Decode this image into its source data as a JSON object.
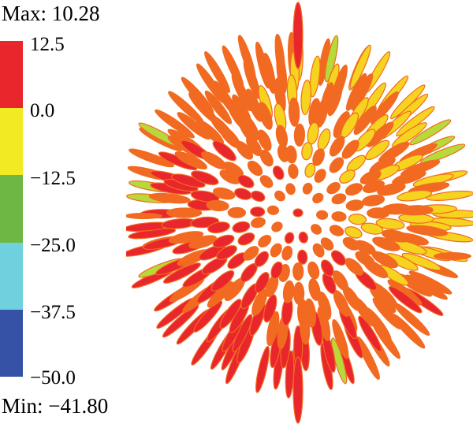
{
  "header": {
    "max_text": "Max: 10.28"
  },
  "footer": {
    "min_text": "Min: −41.80"
  },
  "legend": {
    "ticks": [
      "12.5",
      "0.0",
      "−12.5",
      "−25.0",
      "−37.5",
      "−50.0"
    ],
    "bands": [
      {
        "color": "#e8262b"
      },
      {
        "color": "#f2ea23"
      },
      {
        "color": "#6fb744"
      },
      {
        "color": "#6fd0de"
      },
      {
        "color": "#3652a6"
      }
    ]
  },
  "colors": {
    "petal_red": "#e8262b",
    "petal_orange": "#f26a21",
    "petal_yellow": "#f5d31f",
    "petal_green": "#b8d93a"
  }
}
